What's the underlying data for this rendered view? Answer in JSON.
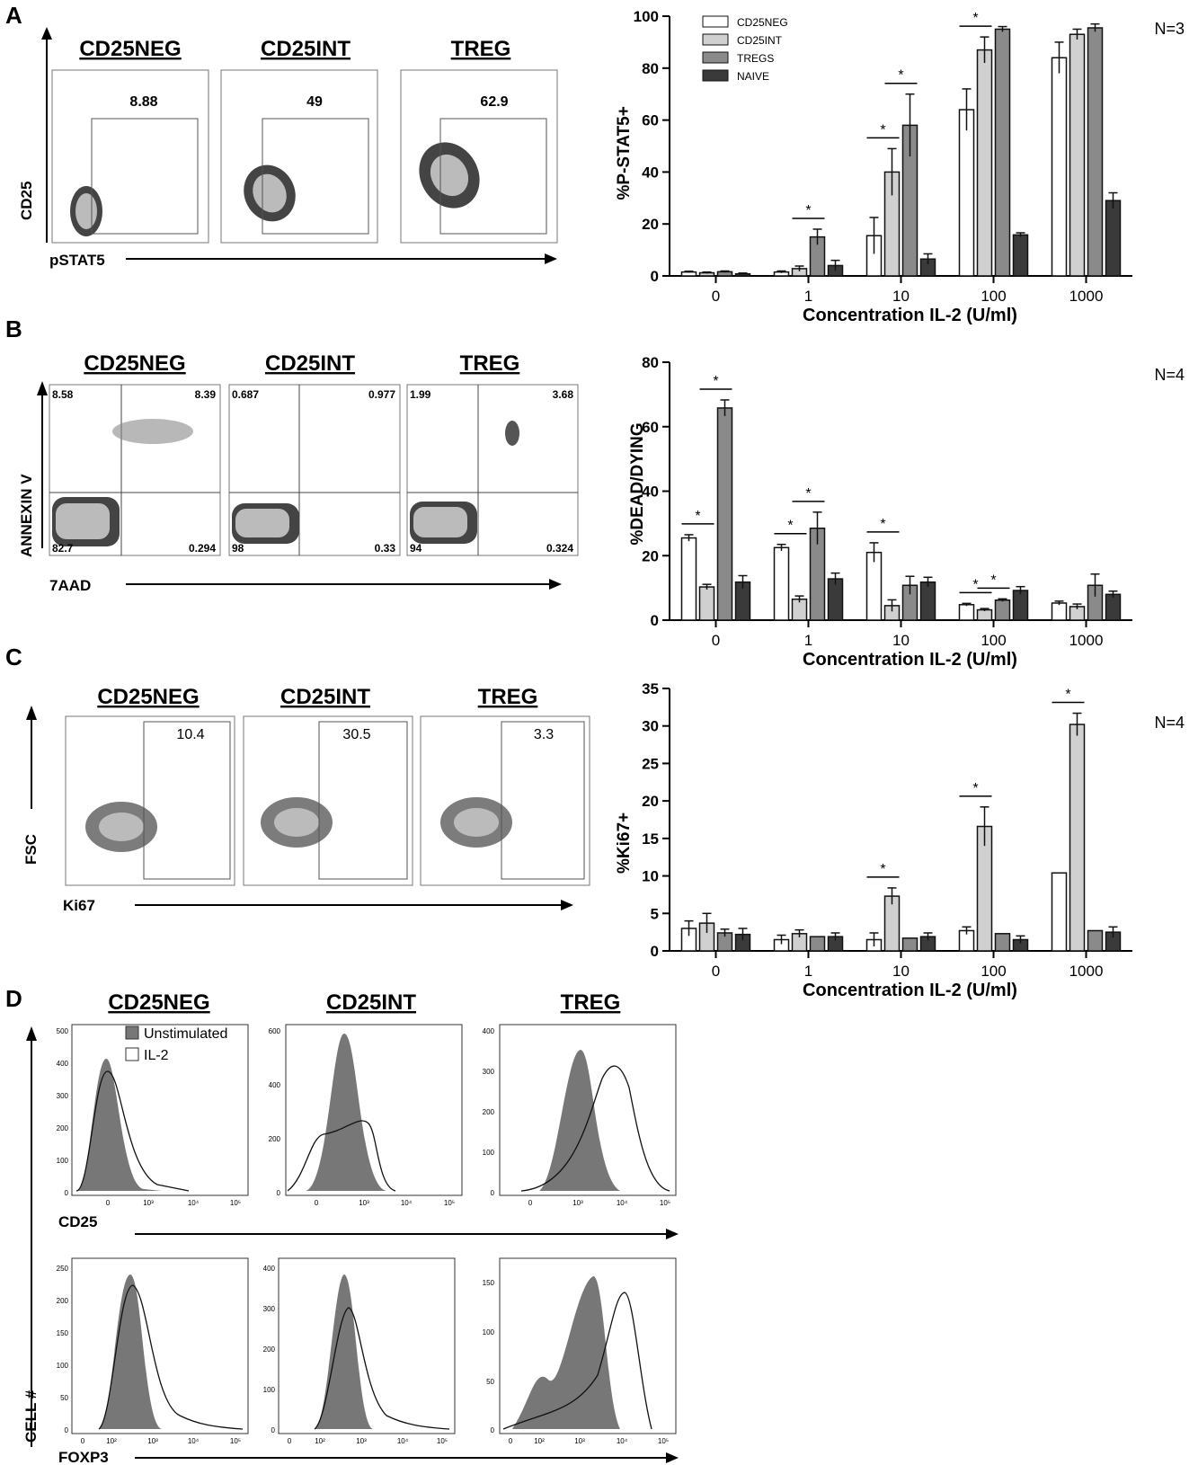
{
  "panel_labels": [
    "A",
    "B",
    "C",
    "D"
  ],
  "groups": [
    "CD25NEG",
    "CD25INT",
    "TREG"
  ],
  "flow": {
    "A": {
      "y_axis": "CD25",
      "x_axis": "pSTAT5",
      "gate_values": [
        "8.88",
        "49",
        "62.9"
      ]
    },
    "B": {
      "y_axis": "ANNEXIN V",
      "x_axis": "7AAD",
      "quadrants": [
        [
          "8.58",
          "8.39",
          "82.7",
          "0.294"
        ],
        [
          "0.687",
          "0.977",
          "98",
          "0.33"
        ],
        [
          "1.99",
          "3.68",
          "94",
          "0.324"
        ]
      ]
    },
    "C": {
      "y_axis": "FSC",
      "x_axis": "Ki67",
      "gate_values": [
        "10.4",
        "30.5",
        "3.3"
      ]
    }
  },
  "histograms": {
    "legend": [
      "Unstimulated",
      "IL-2"
    ],
    "cd25_axis": "CD25",
    "foxp3_axis": "FOXP3",
    "y_axis": "CELL #",
    "cd25_yticks": [
      [
        "0",
        "100",
        "200",
        "300",
        "400",
        "500"
      ],
      [
        "0",
        "200",
        "400",
        "600"
      ],
      [
        "0",
        "100",
        "200",
        "300",
        "400"
      ]
    ],
    "foxp3_yticks": [
      [
        "0",
        "50",
        "100",
        "150",
        "200",
        "250"
      ],
      [
        "0",
        "100",
        "200",
        "300",
        "400"
      ],
      [
        "0",
        "50",
        "100",
        "150"
      ]
    ],
    "x_tick_labels": [
      "0",
      "10³",
      "10⁴",
      "10⁵"
    ],
    "foxp3_x_tick_labels": [
      "0",
      "10²",
      "10³",
      "10⁴",
      "10⁵"
    ]
  },
  "colors": {
    "cd25neg": "#ffffff",
    "cd25int": "#d0d0d0",
    "tregs": "#8a8a8a",
    "naive": "#3a3a3a"
  },
  "chart_data": [
    {
      "type": "bar",
      "panel": "A",
      "ylabel": "%P-STAT5+",
      "xlabel": "Concentration IL-2 (U/ml)",
      "annotation": "N=3",
      "categories": [
        "0",
        "1",
        "10",
        "100",
        "1000"
      ],
      "ylim": [
        0,
        100
      ],
      "yticks": [
        0,
        20,
        40,
        60,
        80,
        100
      ],
      "legend_position": "top-left",
      "series": [
        {
          "name": "CD25NEG",
          "values": [
            1.5,
            1.5,
            15.5,
            64,
            84
          ],
          "errors": [
            0.3,
            0.4,
            7,
            8,
            6
          ]
        },
        {
          "name": "CD25INT",
          "values": [
            1.2,
            2.8,
            40,
            87,
            93
          ],
          "errors": [
            0.3,
            1,
            9,
            5,
            2
          ]
        },
        {
          "name": "TREGS",
          "values": [
            1.6,
            15,
            58,
            95,
            95.5
          ],
          "errors": [
            0.3,
            3,
            12,
            1,
            1.5
          ]
        },
        {
          "name": "NAIVE",
          "values": [
            0.8,
            4,
            6.5,
            15.8,
            29
          ],
          "errors": [
            0.3,
            2,
            2,
            0.8,
            3
          ]
        }
      ],
      "significance": [
        [
          1,
          1,
          2
        ],
        [
          2,
          0,
          1
        ],
        [
          2,
          1,
          2
        ],
        [
          3,
          0,
          1
        ]
      ]
    },
    {
      "type": "bar",
      "panel": "B",
      "ylabel": "%DEAD/DYING",
      "xlabel": "Concentration IL-2 (U/ml)",
      "annotation": "N=4",
      "categories": [
        "0",
        "1",
        "10",
        "100",
        "1000"
      ],
      "ylim": [
        0,
        80
      ],
      "yticks": [
        0,
        20,
        40,
        60,
        80
      ],
      "series": [
        {
          "name": "CD25NEG",
          "values": [
            25.5,
            22.5,
            21,
            4.8,
            5.3
          ],
          "errors": [
            1,
            1,
            3,
            0.4,
            0.6
          ]
        },
        {
          "name": "CD25INT",
          "values": [
            10.3,
            6.5,
            4.5,
            3.2,
            4.2
          ],
          "errors": [
            0.8,
            1,
            1.8,
            0.4,
            0.8
          ]
        },
        {
          "name": "TREGS",
          "values": [
            65.8,
            28.5,
            10.8,
            6.2,
            10.8
          ],
          "errors": [
            2.5,
            5,
            2.8,
            0.4,
            3.5
          ]
        },
        {
          "name": "NAIVE",
          "values": [
            11.8,
            12.8,
            11.8,
            9.2,
            8
          ],
          "errors": [
            2,
            1.8,
            1.5,
            1.2,
            1
          ]
        }
      ],
      "significance": [
        [
          0,
          0,
          1
        ],
        [
          0,
          1,
          2
        ],
        [
          1,
          0,
          1
        ],
        [
          1,
          1,
          2
        ],
        [
          2,
          0,
          1
        ],
        [
          3,
          0,
          1
        ],
        [
          3,
          1,
          2
        ]
      ]
    },
    {
      "type": "bar",
      "panel": "C",
      "ylabel": "%Ki67+",
      "xlabel": "Concentration IL-2 (U/ml)",
      "annotation": "N=4",
      "categories": [
        "0",
        "1",
        "10",
        "100",
        "1000"
      ],
      "ylim": [
        0,
        35
      ],
      "yticks": [
        0,
        5,
        10,
        15,
        20,
        25,
        30,
        35
      ],
      "series": [
        {
          "name": "CD25NEG",
          "values": [
            3,
            1.5,
            1.5,
            2.7,
            10.4
          ],
          "errors": [
            1,
            0.6,
            0.9,
            0.5,
            0
          ]
        },
        {
          "name": "CD25INT",
          "values": [
            3.7,
            2.3,
            7.3,
            16.6,
            30.2
          ],
          "errors": [
            1.3,
            0.5,
            1.1,
            2.6,
            1.5
          ]
        },
        {
          "name": "TREGS",
          "values": [
            2.4,
            1.9,
            1.7,
            2.3,
            2.7
          ],
          "errors": [
            0.5,
            0,
            0,
            0,
            0
          ]
        },
        {
          "name": "NAIVE",
          "values": [
            2.2,
            1.9,
            1.9,
            1.5,
            2.5
          ],
          "errors": [
            0.8,
            0.5,
            0.5,
            0.5,
            0.7
          ]
        }
      ],
      "significance": [
        [
          2,
          0,
          1
        ],
        [
          3,
          0,
          1
        ],
        [
          4,
          0,
          1
        ]
      ]
    }
  ]
}
